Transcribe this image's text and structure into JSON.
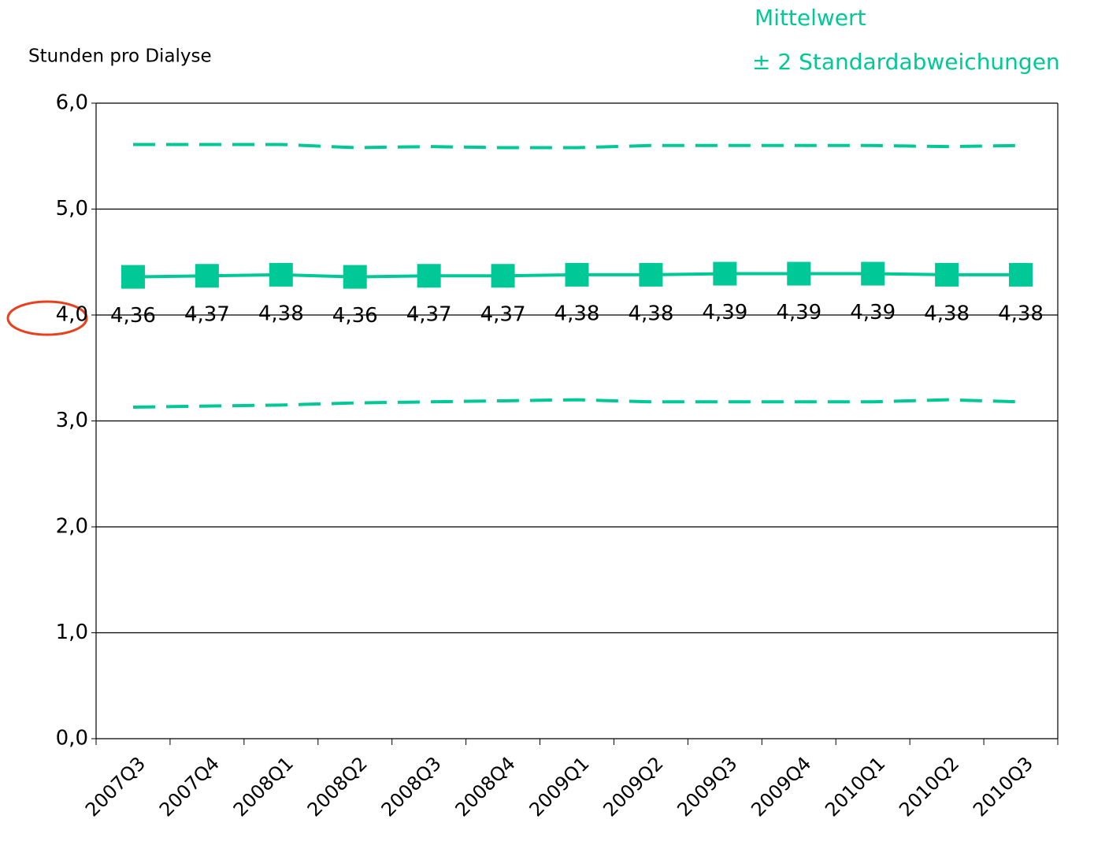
{
  "chart_data": {
    "type": "line",
    "y_label": "Stunden pro Dialyse",
    "categories": [
      "2007Q3",
      "2007Q4",
      "2008Q1",
      "2008Q2",
      "2008Q3",
      "2008Q4",
      "2009Q1",
      "2009Q2",
      "2009Q3",
      "2009Q4",
      "2010Q1",
      "2010Q2",
      "2010Q3"
    ],
    "series": [
      {
        "name": "Mittelwert",
        "color": "#00c896",
        "style": "solid",
        "marker": "square",
        "values": [
          4.36,
          4.37,
          4.38,
          4.36,
          4.37,
          4.37,
          4.38,
          4.38,
          4.39,
          4.39,
          4.39,
          4.38,
          4.38
        ],
        "value_labels": [
          "4,36",
          "4,37",
          "4,38",
          "4,36",
          "4,37",
          "4,37",
          "4,38",
          "4,38",
          "4,39",
          "4,39",
          "4,39",
          "4,38",
          "4,38"
        ]
      },
      {
        "name": "± 2 Standardabweichungen",
        "color": "#00c896",
        "style": "dashed",
        "values": [
          5.61,
          5.61,
          5.61,
          5.58,
          5.59,
          5.58,
          5.58,
          5.6,
          5.6,
          5.6,
          5.6,
          5.59,
          5.6
        ]
      },
      {
        "color": "#00c896",
        "style": "dashed",
        "values": [
          3.13,
          3.14,
          3.15,
          3.17,
          3.18,
          3.19,
          3.2,
          3.18,
          3.18,
          3.18,
          3.18,
          3.2,
          3.18
        ]
      }
    ],
    "ylim": [
      0,
      6
    ],
    "yticks": [
      {
        "value": 0,
        "label": "0,0"
      },
      {
        "value": 1,
        "label": "1,0"
      },
      {
        "value": 2,
        "label": "2,0"
      },
      {
        "value": 3,
        "label": "3,0"
      },
      {
        "value": 4,
        "label": "4,0"
      },
      {
        "value": 5,
        "label": "5,0"
      },
      {
        "value": 6,
        "label": "6,0"
      }
    ],
    "grid": true
  }
}
